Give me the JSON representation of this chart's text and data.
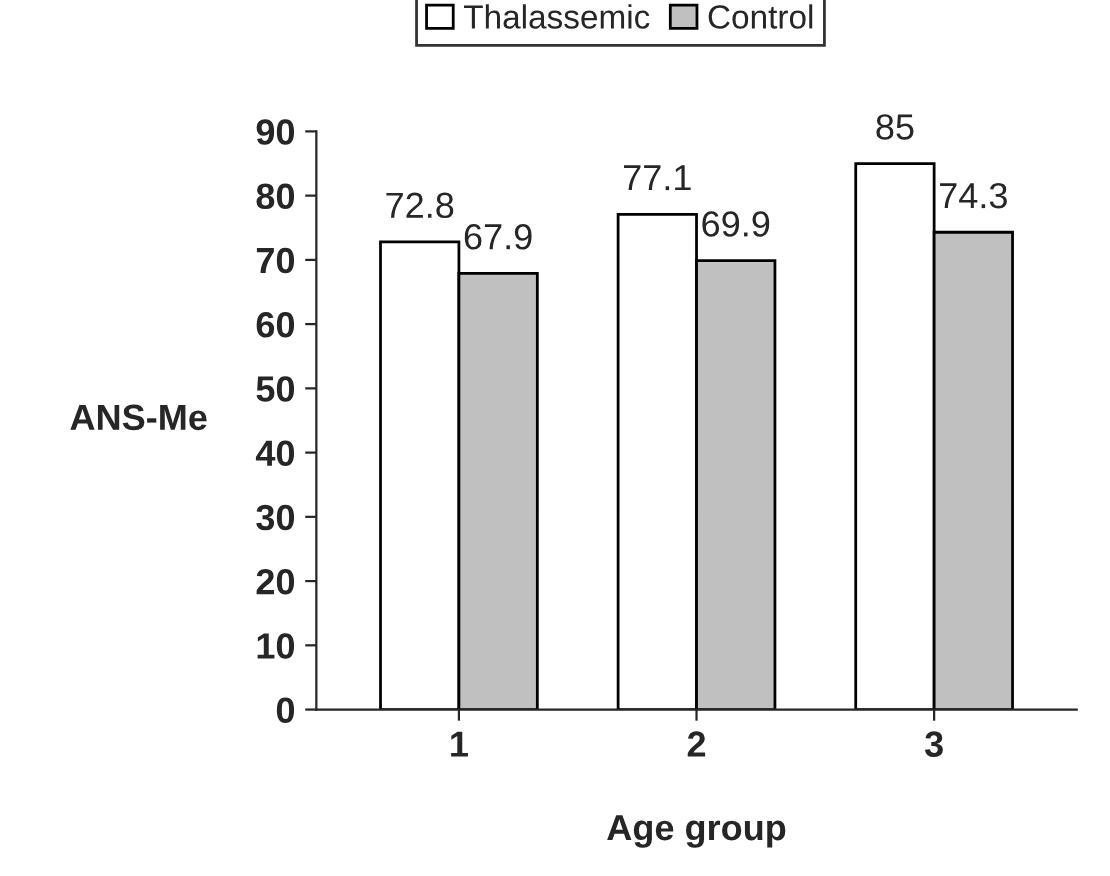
{
  "chart_data": {
    "type": "bar",
    "xlabel": "Age group",
    "ylabel": "ANS-Me",
    "categories": [
      "1",
      "2",
      "3"
    ],
    "series": [
      {
        "name": "Thalassemic",
        "color": "#ffffff",
        "values": [
          72.8,
          77.1,
          85
        ]
      },
      {
        "name": "Control",
        "color": "#c0c0c0",
        "values": [
          67.9,
          69.9,
          74.3
        ]
      }
    ],
    "ylim": [
      0,
      90
    ],
    "yticks": [
      0,
      10,
      20,
      30,
      40,
      50,
      60,
      70,
      80,
      90
    ],
    "data_labels": true,
    "legend": "top",
    "grid": false
  }
}
